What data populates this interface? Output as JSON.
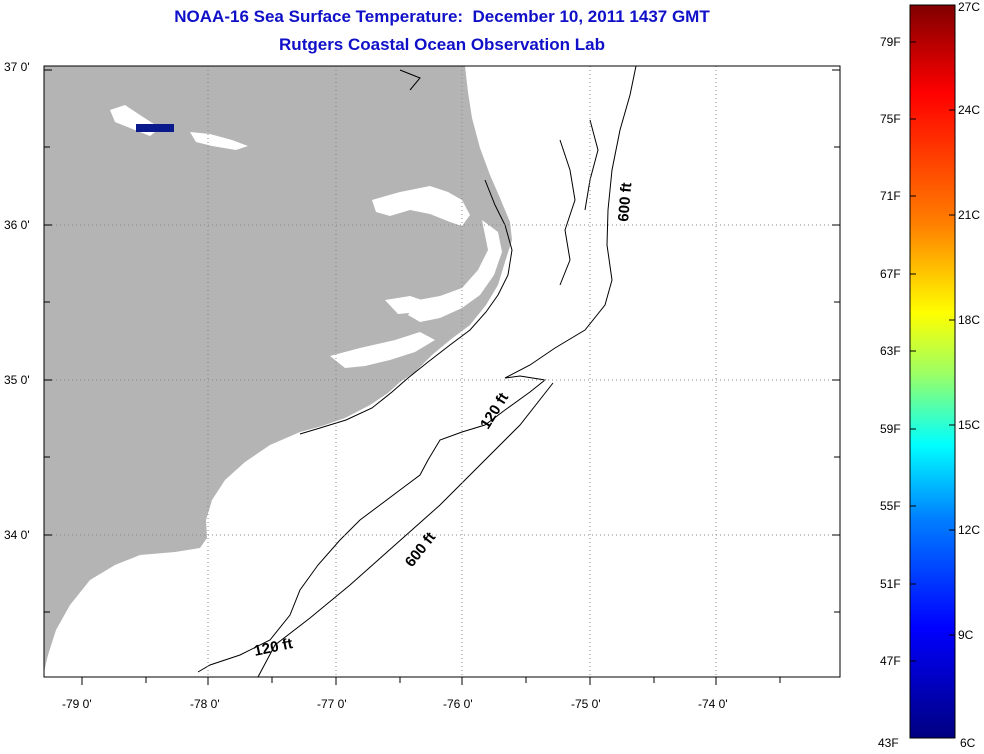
{
  "header": {
    "title": "NOAA-16 Sea Surface Temperature:  December 10, 2011 1437 GMT",
    "subtitle": "Rutgers Coastal Ocean Observation Lab"
  },
  "map": {
    "lat_labels": [
      "37 0'",
      "36 0'",
      "35 0'",
      "34 0'"
    ],
    "lon_labels": [
      "-79 0'",
      "-78 0'",
      "-77 0'",
      "-76 0'",
      "-75 0'",
      "-74 0'"
    ],
    "land_color": "#b4b4b4",
    "water_color": "#ffffff",
    "contours": [
      {
        "label": "600 ft"
      },
      {
        "label": "120 ft"
      },
      {
        "label": "600 ft"
      },
      {
        "label": "120 ft"
      }
    ]
  },
  "colorbar": {
    "fahrenheit_labels": [
      "79F",
      "75F",
      "71F",
      "67F",
      "63F",
      "59F",
      "55F",
      "51F",
      "47F",
      "43F"
    ],
    "celsius_labels": [
      "27C",
      "24C",
      "21C",
      "18C",
      "15C",
      "12C",
      "9C",
      "6C"
    ],
    "colors": [
      "#800000",
      "#ff0000",
      "#ff8000",
      "#ffff00",
      "#80ff80",
      "#00ffff",
      "#0080ff",
      "#0000ff",
      "#000080"
    ]
  }
}
